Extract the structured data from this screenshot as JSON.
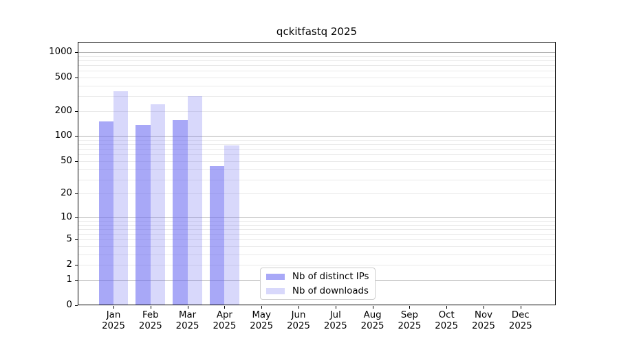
{
  "chart_data": {
    "type": "bar",
    "title": "qckitfastq 2025",
    "categories": [
      "Jan",
      "Feb",
      "Mar",
      "Apr",
      "May",
      "Jun",
      "Jul",
      "Aug",
      "Sep",
      "Oct",
      "Nov",
      "Dec"
    ],
    "category_year": "2025",
    "series": [
      {
        "name": "Nb of distinct IPs",
        "color": "rgba(99,99,240,0.56)",
        "values": [
          150,
          137,
          156,
          44,
          null,
          null,
          null,
          null,
          null,
          null,
          null,
          null
        ]
      },
      {
        "name": "Nb of downloads",
        "color": "rgba(99,99,240,0.25)",
        "values": [
          340,
          240,
          300,
          77,
          null,
          null,
          null,
          null,
          null,
          null,
          null,
          null
        ]
      }
    ],
    "yscale": "log1p",
    "ylim": [
      0,
      1300
    ],
    "y_tick_labels": [
      0,
      1,
      2,
      5,
      10,
      20,
      50,
      100,
      200,
      500,
      1000
    ],
    "y_major_gridlines": [
      1,
      10,
      100,
      1000
    ],
    "y_minor_gridlines": [
      2,
      3,
      4,
      5,
      6,
      7,
      8,
      9,
      20,
      30,
      40,
      50,
      60,
      70,
      80,
      90,
      200,
      300,
      400,
      500,
      600,
      700,
      800,
      900
    ],
    "grid": true,
    "legend_position": "lower center",
    "xlabel": "",
    "ylabel": ""
  }
}
